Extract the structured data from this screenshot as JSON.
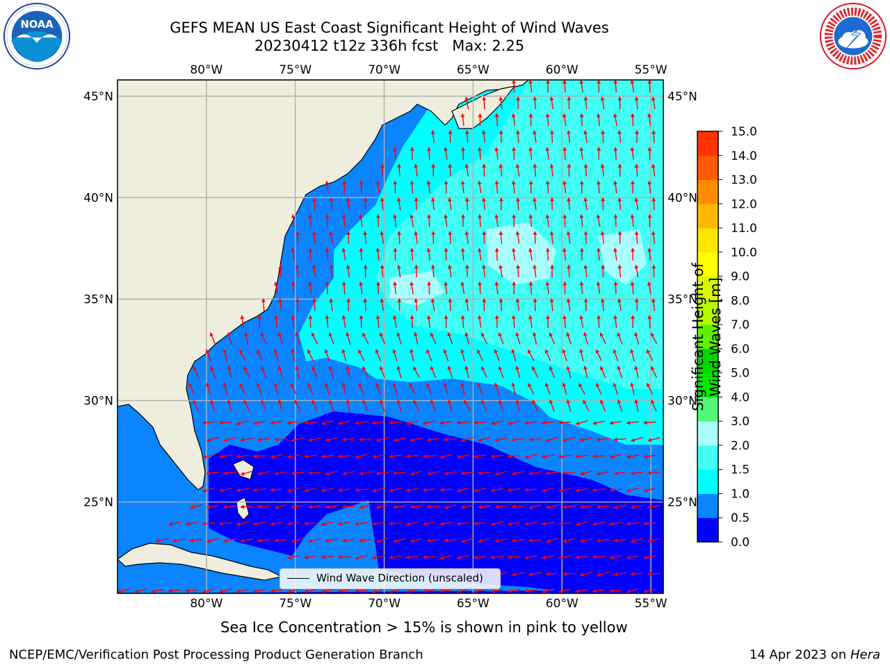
{
  "title": {
    "line1": "GEFS MEAN US East Coast Significant Height of Wind Waves",
    "line2": "20230412 t12z 336h fcst   Max: 2.25"
  },
  "logos": {
    "left": {
      "icon": "noaa-logo",
      "text": "NOAA",
      "ring_text": "NATIONAL OCEANIC AND ATMOSPHERIC ADMINISTRATION · U.S. DEPARTMENT OF COMMERCE"
    },
    "right": {
      "icon": "nws-logo",
      "ring_text": "NATIONAL WEATHER SERVICE"
    }
  },
  "map": {
    "lon_ticks": [
      "80°W",
      "75°W",
      "70°W",
      "65°W",
      "60°W",
      "55°W"
    ],
    "lat_ticks": [
      "45°N",
      "40°N",
      "35°N",
      "30°N",
      "25°N"
    ],
    "lon_values": [
      -80,
      -75,
      -70,
      -65,
      -60,
      -55
    ],
    "lat_values": [
      45,
      40,
      35,
      30,
      25
    ],
    "extent": {
      "lon": [
        -85,
        -54.3
      ],
      "lat": [
        20.5,
        45.8
      ]
    },
    "colors": {
      "land": "#eeedde",
      "grid": "#b0b0b0",
      "arrow": "#ff0000",
      "coast": "#000000"
    },
    "legend_label": "Wind Wave Direction (unscaled)"
  },
  "colorbar": {
    "label": "Significant Height of Wind Waves [m]",
    "ticks": [
      "0.0",
      "0.5",
      "1.0",
      "1.5",
      "2.0",
      "3.0",
      "4.0",
      "5.0",
      "6.0",
      "7.0",
      "8.0",
      "9.0",
      "10.0",
      "11.0",
      "12.0",
      "13.0",
      "14.0",
      "15.0"
    ],
    "colors": [
      "#0000ff",
      "#0a84ff",
      "#00ffff",
      "#41fff5",
      "#a9ffff",
      "#52f878",
      "#00ea00",
      "#00d600",
      "#5ef000",
      "#b7f700",
      "#d8f700",
      "#ffff00",
      "#ffe600",
      "#ffb700",
      "#ff8c00",
      "#ff5a00",
      "#ff3200",
      "#ff0000"
    ]
  },
  "ice_note": "Sea Ice Concentration > 15% is shown in pink to yellow",
  "footer": {
    "left": "NCEP/EMC/Verification Post Processing Product Generation Branch",
    "right_prefix": "14 Apr 2023 on ",
    "right_host": "Hera"
  }
}
